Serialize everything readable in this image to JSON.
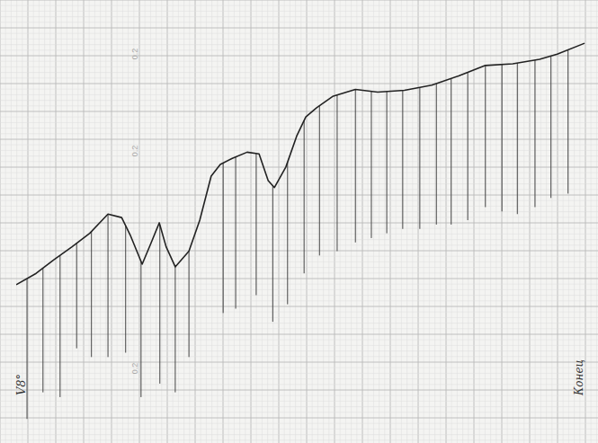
{
  "chart_data": {
    "type": "line",
    "xlim": [
      0,
      100
    ],
    "ylim": [
      0,
      100
    ],
    "grid": true,
    "tick_labels": false,
    "annotations": [
      "V8°",
      "Конец",
      "0.2",
      "0.2",
      "0.2"
    ],
    "series": [
      {
        "type": "line",
        "color": "#222222",
        "x": [
          0,
          3.5,
          6.6,
          9.8,
          12.9,
          16.1,
          18.5,
          20.0,
          22.1,
          23.7,
          25.1,
          26.3,
          27.9,
          30.3,
          32.2,
          34.2,
          35.8,
          37.9,
          40.5,
          42.6,
          44.2,
          45.3,
          47.3,
          49.2,
          50.8,
          52.7,
          55.5,
          59.5,
          63.4,
          68.1,
          72.9,
          77.6,
          82.3,
          87.1,
          91.8,
          94.9,
          99.7
        ],
        "values": [
          35.5,
          38.1,
          41.2,
          44.2,
          47.3,
          51.7,
          50.9,
          46.9,
          40.2,
          45.2,
          49.7,
          44.2,
          39.6,
          43.2,
          50.3,
          60.4,
          63.1,
          64.5,
          65.9,
          65.5,
          59.4,
          57.8,
          62.5,
          69.6,
          74.0,
          76.1,
          78.7,
          80.3,
          79.7,
          80.1,
          81.3,
          83.4,
          85.8,
          86.2,
          87.2,
          88.4,
          90.9
        ]
      },
      {
        "type": "spike",
        "color": "#444444",
        "x": [
          1.9,
          4.7,
          7.7,
          10.6,
          13.2,
          16.1,
          19.2,
          21.9,
          25.2,
          27.9,
          30.3,
          36.3,
          38.5,
          42.1,
          45.0,
          47.6,
          50.5,
          53.2,
          56.3,
          59.5,
          62.3,
          65.0,
          67.8,
          70.8,
          73.7,
          76.3,
          79.2,
          82.3,
          85.2,
          87.9,
          91.0,
          93.8,
          96.8
        ],
        "values": [
          4.7,
          10.8,
          9.7,
          20.9,
          18.9,
          18.9,
          19.9,
          9.7,
          12.8,
          10.8,
          18.9,
          29.0,
          30.0,
          33.1,
          27.0,
          31.0,
          38.1,
          42.2,
          43.2,
          45.2,
          46.2,
          47.3,
          48.3,
          48.3,
          49.3,
          49.3,
          50.3,
          53.3,
          52.3,
          51.7,
          53.3,
          55.4,
          56.4
        ]
      }
    ]
  }
}
